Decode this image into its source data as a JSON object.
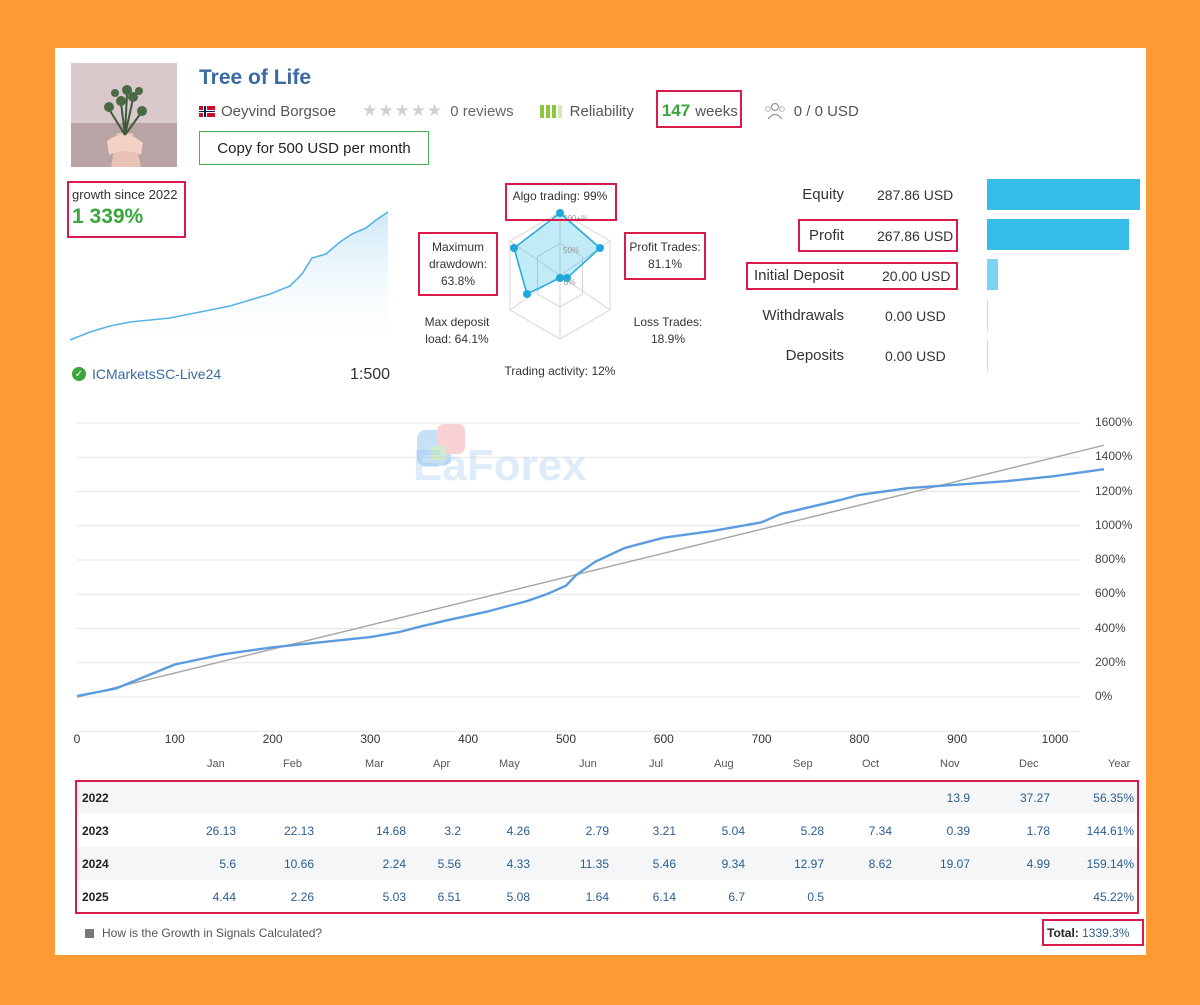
{
  "header": {
    "title": "Tree of Life",
    "author": "Oeyvind Borgsoe",
    "reviews": "0 reviews",
    "reliability": "Reliability",
    "weeks_num": "147",
    "weeks_label": "weeks",
    "subscribers": "0 / 0 USD",
    "copy_button": "Copy for 500 USD per month"
  },
  "growth": {
    "label": "growth since 2022",
    "value": "1 339%",
    "broker": "ICMarketsSC-Live24",
    "leverage": "1:500"
  },
  "radar": {
    "algo": "Algo trading: 99%",
    "profit_l1": "Profit Trades:",
    "profit_l2": "81.1%",
    "loss_l1": "Loss Trades:",
    "loss_l2": "18.9%",
    "activity": "Trading activity: 12%",
    "maxdep_l1": "Max deposit",
    "maxdep_l2": "load: 64.1%",
    "dd_l1": "Maximum",
    "dd_l2": "drawdown:",
    "dd_l3": "63.8%",
    "scale_100": "100+%",
    "scale_50": "50%",
    "scale_0": "0%",
    "values": {
      "algo": 99,
      "profit": 81.1,
      "loss": 18.9,
      "activity": 12,
      "maxdep": 64.1,
      "drawdown": 63.8
    }
  },
  "stats": [
    {
      "label": "Equity",
      "value": "287.86 USD",
      "fraction": 1.0
    },
    {
      "label": "Profit",
      "value": "267.86 USD",
      "fraction": 0.93
    },
    {
      "label": "Initial Deposit",
      "value": "20.00 USD",
      "fraction": 0.07
    },
    {
      "label": "Withdrawals",
      "value": "0.00 USD",
      "fraction": 0.0
    },
    {
      "label": "Deposits",
      "value": "0.00 USD",
      "fraction": 0.0
    }
  ],
  "watermark": "EaForex",
  "chart_data": {
    "type": "line",
    "x_ticks": [
      "0",
      "100",
      "200",
      "300",
      "400",
      "500",
      "600",
      "700",
      "800",
      "900",
      "1000"
    ],
    "y_ticks": [
      "1600%",
      "1400%",
      "1200%",
      "1000%",
      "800%",
      "600%",
      "400%",
      "200%",
      "0%"
    ],
    "xlim": [
      0,
      1050
    ],
    "ylim": [
      0,
      1600
    ],
    "series": [
      {
        "x": [
          0,
          40,
          100,
          150,
          200,
          250,
          300,
          330,
          350,
          380,
          420,
          460,
          480,
          500,
          510,
          530,
          560,
          600,
          650,
          700,
          720,
          750,
          780,
          800,
          850,
          900,
          950,
          1000,
          1050
        ],
        "y": [
          5,
          50,
          190,
          250,
          290,
          320,
          350,
          380,
          410,
          450,
          500,
          560,
          600,
          650,
          710,
          790,
          870,
          930,
          970,
          1020,
          1070,
          1110,
          1150,
          1180,
          1220,
          1240,
          1260,
          1290,
          1330
        ]
      },
      {
        "name": "trend",
        "x": [
          0,
          1050
        ],
        "y": [
          0,
          1470
        ]
      }
    ]
  },
  "growth_table": {
    "months": [
      "Jan",
      "Feb",
      "Mar",
      "Apr",
      "May",
      "Jun",
      "Jul",
      "Aug",
      "Sep",
      "Oct",
      "Nov",
      "Dec"
    ],
    "year_header": "Year",
    "rows": [
      {
        "year": "2022",
        "m": [
          "",
          "",
          "",
          "",
          "",
          "",
          "",
          "",
          "",
          "",
          "13.9",
          "37.27"
        ],
        "total": "56.35%"
      },
      {
        "year": "2023",
        "m": [
          "26.13",
          "22.13",
          "14.68",
          "3.2",
          "4.26",
          "2.79",
          "3.21",
          "5.04",
          "5.28",
          "7.34",
          "0.39",
          "1.78"
        ],
        "total": "144.61%"
      },
      {
        "year": "2024",
        "m": [
          "5.6",
          "10.66",
          "2.24",
          "5.56",
          "4.33",
          "11.35",
          "5.46",
          "9.34",
          "12.97",
          "8.62",
          "19.07",
          "4.99"
        ],
        "total": "159.14%"
      },
      {
        "year": "2025",
        "m": [
          "4.44",
          "2.26",
          "5.03",
          "6.51",
          "5.08",
          "1.64",
          "6.14",
          "6.7",
          "0.5",
          "",
          "",
          ""
        ],
        "total": "45.22%"
      }
    ],
    "how_link": "How is the Growth in Signals Calculated?",
    "total_label": "Total:",
    "total_value": "1339.3%"
  }
}
